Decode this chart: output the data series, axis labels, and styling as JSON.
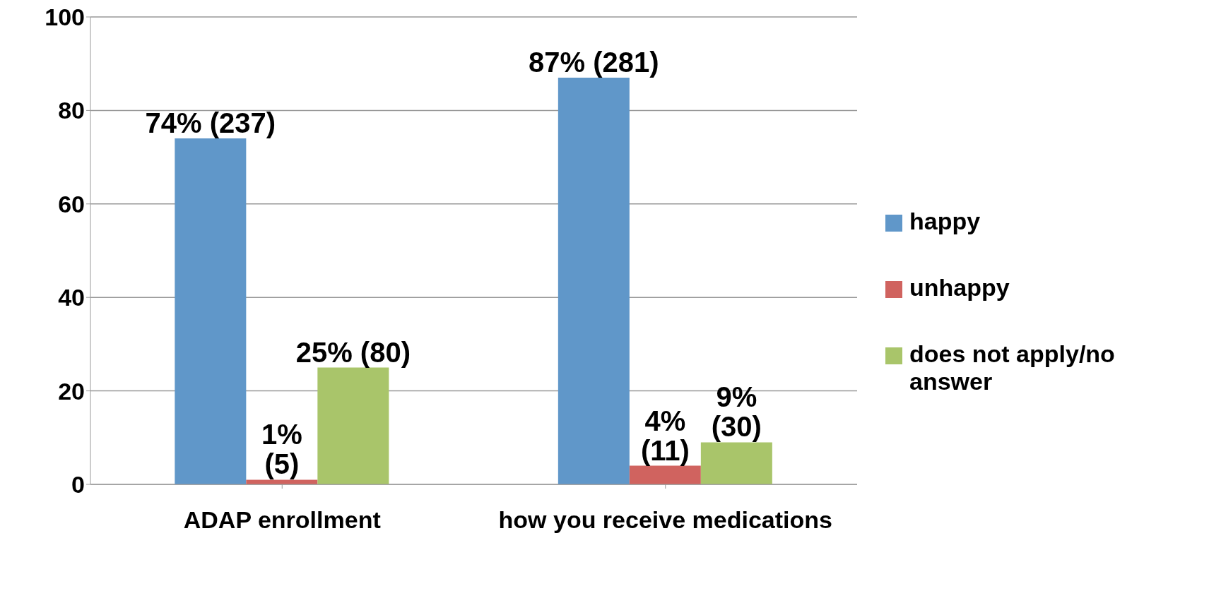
{
  "chart_data": {
    "type": "bar",
    "categories": [
      "ADAP enrollment",
      "how you receive medications"
    ],
    "series": [
      {
        "name": "happy",
        "color": "#6097c9",
        "values": [
          74,
          87
        ],
        "value_labels": [
          "74% (237)",
          "87% (281)"
        ]
      },
      {
        "name": "unhappy",
        "color": "#d0635f",
        "values": [
          1,
          4
        ],
        "value_labels": [
          "1%\n(5)",
          "4%\n(11)"
        ]
      },
      {
        "name": "does not apply/no answer",
        "color": "#a9c56a",
        "values": [
          25,
          9
        ],
        "value_labels": [
          "25% (80)",
          "9%\n(30)"
        ]
      }
    ],
    "ylim": [
      0,
      100
    ],
    "yticks": [
      0,
      20,
      40,
      60,
      80,
      100
    ],
    "grid": "y",
    "legend": "right"
  }
}
